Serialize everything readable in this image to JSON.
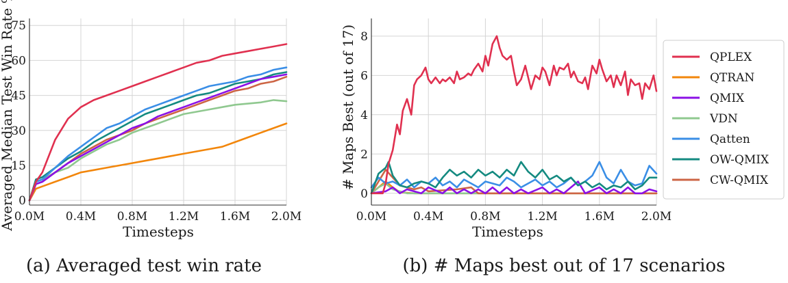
{
  "chart_data": [
    {
      "type": "line",
      "panel": "a",
      "caption": "(a) Averaged test win rate",
      "xlabel": "Timesteps",
      "ylabel": "Averaged Median Test Win Rate %",
      "xlim": [
        0,
        2.0
      ],
      "ylim": [
        -2,
        78
      ],
      "xticks": [
        0,
        0.4,
        0.8,
        1.2,
        1.6,
        2.0
      ],
      "xtick_labels": [
        "0.0M",
        "0.4M",
        "0.8M",
        "1.2M",
        "1.6M",
        "2.0M"
      ],
      "yticks": [
        0,
        15,
        30,
        45,
        60,
        75
      ],
      "ytick_labels": [
        "0",
        "15",
        "30",
        "45",
        "60",
        "75"
      ],
      "series": [
        {
          "name": "VDN",
          "color": "#8fc88f",
          "x": [
            0,
            0.05,
            0.1,
            0.2,
            0.3,
            0.4,
            0.5,
            0.6,
            0.7,
            0.8,
            0.9,
            1.0,
            1.1,
            1.2,
            1.3,
            1.4,
            1.5,
            1.6,
            1.7,
            1.8,
            1.9,
            2.0
          ],
          "values": [
            0,
            8,
            9,
            12,
            14,
            18,
            21,
            24,
            26,
            29,
            31,
            33,
            35,
            37,
            38,
            39,
            40,
            41,
            41.5,
            42,
            43,
            42.5
          ]
        },
        {
          "name": "QTRAN",
          "color": "#f2860b",
          "x": [
            0,
            0.05,
            0.1,
            0.2,
            0.3,
            0.4,
            0.5,
            0.6,
            0.7,
            0.8,
            0.9,
            1.0,
            1.1,
            1.2,
            1.3,
            1.4,
            1.5,
            1.6,
            1.7,
            1.8,
            1.9,
            2.0
          ],
          "values": [
            0,
            5,
            6,
            8,
            10,
            12,
            13,
            14,
            15,
            16,
            17,
            18,
            19,
            20,
            21,
            22,
            23,
            25,
            27,
            29,
            31,
            33
          ]
        },
        {
          "name": "CW-QMIX",
          "color": "#cd6545",
          "x": [
            0,
            0.05,
            0.1,
            0.2,
            0.3,
            0.4,
            0.5,
            0.6,
            0.7,
            0.8,
            0.9,
            1.0,
            1.1,
            1.2,
            1.3,
            1.4,
            1.5,
            1.6,
            1.7,
            1.8,
            1.9,
            2.0
          ],
          "values": [
            0,
            7,
            8,
            12,
            16,
            20,
            23,
            26,
            28,
            30,
            33,
            35,
            37,
            39,
            41,
            43,
            45,
            47,
            48,
            50,
            51,
            53
          ]
        },
        {
          "name": "OW-QMIX",
          "color": "#148a80",
          "x": [
            0,
            0.05,
            0.1,
            0.2,
            0.3,
            0.4,
            0.5,
            0.6,
            0.7,
            0.8,
            0.9,
            1.0,
            1.1,
            1.2,
            1.3,
            1.4,
            1.5,
            1.6,
            1.7,
            1.8,
            1.9,
            2.0
          ],
          "values": [
            0,
            9,
            10,
            14,
            18,
            21,
            25,
            28,
            31,
            34,
            37,
            39,
            41,
            43,
            45,
            46,
            48,
            50,
            51,
            52,
            54,
            55
          ]
        },
        {
          "name": "QMIX",
          "color": "#8b10e6",
          "x": [
            0,
            0.05,
            0.1,
            0.2,
            0.3,
            0.4,
            0.5,
            0.6,
            0.7,
            0.8,
            0.9,
            1.0,
            1.1,
            1.2,
            1.3,
            1.4,
            1.5,
            1.6,
            1.7,
            1.8,
            1.9,
            2.0
          ],
          "values": [
            0,
            7,
            8,
            12,
            16,
            19,
            22,
            25,
            28,
            31,
            33,
            36,
            38,
            40,
            42,
            44,
            46,
            48,
            50,
            52,
            53,
            54
          ]
        },
        {
          "name": "Qatten",
          "color": "#3a8ee6",
          "x": [
            0,
            0.05,
            0.1,
            0.2,
            0.3,
            0.4,
            0.5,
            0.6,
            0.7,
            0.8,
            0.9,
            1.0,
            1.1,
            1.2,
            1.3,
            1.4,
            1.5,
            1.6,
            1.7,
            1.8,
            1.9,
            2.0
          ],
          "values": [
            0,
            8,
            9,
            14,
            19,
            23,
            27,
            31,
            33,
            36,
            39,
            41,
            43,
            45,
            47,
            49,
            50,
            51,
            53,
            54,
            56,
            57
          ]
        },
        {
          "name": "QPLEX",
          "color": "#e0304f",
          "x": [
            0,
            0.05,
            0.1,
            0.2,
            0.3,
            0.4,
            0.5,
            0.6,
            0.7,
            0.8,
            0.9,
            1.0,
            1.1,
            1.2,
            1.3,
            1.4,
            1.5,
            1.6,
            1.7,
            1.8,
            1.9,
            2.0
          ],
          "values": [
            0,
            8,
            12,
            26,
            35,
            40,
            43,
            45,
            47,
            49,
            51,
            53,
            55,
            57,
            59,
            60,
            62,
            63,
            64,
            65,
            66,
            67
          ]
        }
      ]
    },
    {
      "type": "line",
      "panel": "b",
      "caption": "(b) # Maps best out of 17 scenarios",
      "xlabel": "Timesteps",
      "ylabel": "# Maps Best (out of 17)",
      "xlim": [
        0,
        2.0
      ],
      "ylim": [
        -0.6,
        8.9
      ],
      "xticks": [
        0,
        0.4,
        0.8,
        1.2,
        1.6,
        2.0
      ],
      "xtick_labels": [
        "0.0M",
        "0.4M",
        "0.8M",
        "1.2M",
        "1.6M",
        "2.0M"
      ],
      "yticks": [
        0,
        2,
        4,
        6,
        8
      ],
      "ytick_labels": [
        "0",
        "2",
        "4",
        "6",
        "8"
      ],
      "series": [
        {
          "name": "QTRAN",
          "color": "#f2860b",
          "x": [
            0,
            0.1,
            0.15,
            0.2,
            0.3,
            2.0
          ],
          "values": [
            0,
            0.6,
            0.3,
            0.05,
            0,
            0
          ]
        },
        {
          "name": "VDN",
          "color": "#8fc88f",
          "x": [
            0,
            0.05,
            0.1,
            0.15,
            0.2,
            0.25,
            2.0
          ],
          "values": [
            0,
            0.3,
            0.5,
            0.2,
            0.1,
            0,
            0
          ]
        },
        {
          "name": "CW-QMIX",
          "color": "#cd6545",
          "x": [
            0,
            0.05,
            0.1,
            0.15,
            0.2,
            0.25,
            0.3,
            0.35,
            0.4,
            0.6,
            0.7,
            0.75,
            2.0
          ],
          "values": [
            0,
            0.6,
            1.2,
            0.8,
            0.4,
            0.3,
            0.2,
            0.3,
            0.1,
            0.2,
            0.3,
            0,
            0
          ]
        },
        {
          "name": "QMIX",
          "color": "#8b10e6",
          "x": [
            0,
            0.1,
            0.15,
            0.2,
            0.25,
            0.35,
            0.4,
            0.5,
            0.55,
            0.6,
            0.65,
            0.7,
            0.75,
            0.8,
            0.85,
            0.9,
            0.95,
            1.0,
            1.05,
            1.1,
            1.2,
            1.25,
            1.3,
            1.35,
            1.4,
            1.45,
            1.5,
            1.6,
            1.65,
            1.7,
            1.75,
            1.8,
            1.85,
            1.9,
            1.95,
            2.0
          ],
          "values": [
            0,
            0.1,
            0.3,
            0,
            0.2,
            0,
            0.3,
            0,
            0.3,
            0,
            0.2,
            0,
            0.2,
            0,
            0.3,
            0,
            0.3,
            0,
            0.2,
            0,
            0.3,
            0,
            0.2,
            0,
            0.3,
            0.6,
            0,
            0.3,
            0,
            0.2,
            0,
            0.3,
            0,
            0,
            0.2,
            0.1
          ]
        },
        {
          "name": "Qatten",
          "color": "#3a8ee6",
          "x": [
            0,
            0.05,
            0.1,
            0.15,
            0.2,
            0.25,
            0.3,
            0.35,
            0.4,
            0.45,
            0.5,
            0.55,
            0.6,
            0.65,
            0.7,
            0.75,
            0.8,
            0.85,
            0.9,
            0.95,
            1.0,
            1.05,
            1.1,
            1.15,
            1.2,
            1.25,
            1.3,
            1.35,
            1.4,
            1.45,
            1.5,
            1.55,
            1.6,
            1.65,
            1.7,
            1.75,
            1.8,
            1.85,
            1.9,
            1.95,
            2.0
          ],
          "values": [
            0.3,
            0.8,
            0.5,
            0.6,
            0.4,
            0.7,
            0.3,
            0.6,
            0.5,
            0.8,
            0.4,
            0.6,
            0.3,
            0.7,
            0.5,
            0.3,
            0.6,
            0.5,
            0.4,
            0.8,
            0.6,
            0.3,
            0.5,
            0.7,
            0.4,
            0.6,
            0.3,
            0.5,
            0.8,
            0.4,
            0.6,
            0.9,
            1.6,
            0.8,
            0.5,
            1.2,
            0.6,
            0.4,
            0.5,
            1.4,
            1.0
          ]
        },
        {
          "name": "OW-QMIX",
          "color": "#148a80",
          "x": [
            0,
            0.05,
            0.1,
            0.12,
            0.15,
            0.2,
            0.25,
            0.3,
            0.35,
            0.4,
            0.45,
            0.5,
            0.55,
            0.6,
            0.65,
            0.7,
            0.75,
            0.8,
            0.85,
            0.9,
            0.95,
            1.0,
            1.05,
            1.1,
            1.15,
            1.2,
            1.25,
            1.3,
            1.35,
            1.4,
            1.45,
            1.5,
            1.55,
            1.6,
            1.65,
            1.7,
            1.75,
            1.8,
            1.85,
            1.9,
            1.95,
            2.0
          ],
          "values": [
            0,
            1.0,
            1.3,
            1.6,
            0.9,
            0.4,
            0.3,
            0.5,
            0.6,
            0.5,
            0.3,
            0.8,
            1.2,
            0.9,
            1.1,
            0.8,
            1.2,
            0.9,
            1.1,
            0.8,
            1.2,
            0.9,
            1.6,
            1.1,
            0.8,
            1.2,
            0.7,
            0.9,
            0.6,
            0.8,
            0.4,
            0.6,
            0.3,
            0.5,
            0.2,
            0.4,
            0.3,
            0.6,
            0.2,
            0.4,
            0.8,
            0.8
          ]
        },
        {
          "name": "QPLEX",
          "color": "#e0304f",
          "x": [
            0,
            0.08,
            0.1,
            0.12,
            0.15,
            0.18,
            0.2,
            0.22,
            0.25,
            0.28,
            0.3,
            0.32,
            0.35,
            0.38,
            0.4,
            0.42,
            0.45,
            0.48,
            0.5,
            0.52,
            0.55,
            0.58,
            0.6,
            0.62,
            0.65,
            0.68,
            0.7,
            0.72,
            0.75,
            0.78,
            0.8,
            0.82,
            0.85,
            0.88,
            0.9,
            0.92,
            0.95,
            0.98,
            1.0,
            1.02,
            1.05,
            1.08,
            1.1,
            1.12,
            1.15,
            1.18,
            1.2,
            1.22,
            1.25,
            1.28,
            1.3,
            1.32,
            1.35,
            1.38,
            1.4,
            1.42,
            1.45,
            1.48,
            1.5,
            1.52,
            1.55,
            1.58,
            1.6,
            1.62,
            1.65,
            1.68,
            1.7,
            1.72,
            1.75,
            1.78,
            1.8,
            1.82,
            1.85,
            1.88,
            1.9,
            1.92,
            1.95,
            1.98,
            2.0
          ],
          "values": [
            0,
            0,
            0.5,
            1.5,
            2.2,
            3.5,
            3.0,
            4.2,
            4.8,
            4.0,
            5.5,
            5.8,
            6.0,
            6.4,
            5.8,
            5.6,
            5.9,
            5.6,
            5.8,
            5.7,
            5.9,
            5.6,
            6.2,
            5.8,
            5.9,
            6.1,
            6.0,
            6.3,
            6.6,
            6.2,
            7.0,
            6.5,
            7.6,
            8.0,
            7.4,
            7.0,
            6.8,
            7.0,
            6.2,
            5.5,
            5.8,
            6.5,
            5.9,
            5.3,
            6.0,
            5.8,
            6.4,
            6.2,
            5.5,
            6.5,
            6.0,
            6.4,
            6.3,
            6.6,
            5.9,
            6.2,
            5.7,
            5.6,
            5.9,
            5.3,
            6.5,
            6.1,
            6.8,
            6.3,
            5.7,
            6.0,
            5.4,
            6.0,
            5.5,
            6.2,
            5.0,
            5.8,
            5.5,
            5.6,
            4.8,
            5.6,
            5.3,
            6.0,
            5.2
          ]
        }
      ]
    }
  ],
  "legend": {
    "placement": "right",
    "entries": [
      {
        "label": "QPLEX",
        "color": "#e0304f"
      },
      {
        "label": "QTRAN",
        "color": "#f2860b"
      },
      {
        "label": "QMIX",
        "color": "#8b10e6"
      },
      {
        "label": "VDN",
        "color": "#8fc88f"
      },
      {
        "label": "Qatten",
        "color": "#3a8ee6"
      },
      {
        "label": "OW-QMIX",
        "color": "#148a80"
      },
      {
        "label": "CW-QMIX",
        "color": "#cd6545"
      }
    ]
  }
}
